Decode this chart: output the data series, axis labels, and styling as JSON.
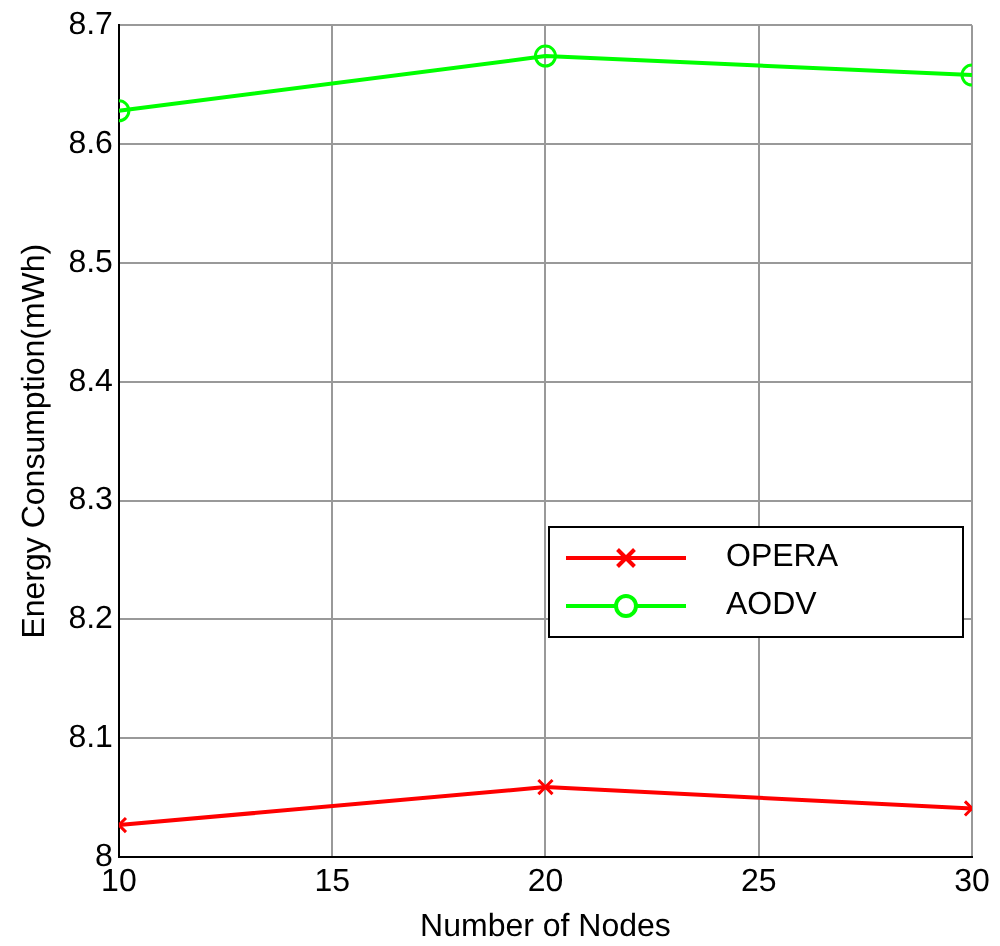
{
  "chart_data": {
    "type": "line",
    "xlabel": "Number of Nodes",
    "ylabel": "Energy Consumption(mWh)",
    "x": [
      10,
      20,
      30
    ],
    "series": [
      {
        "name": "OPERA",
        "color": "#ff0000",
        "values": [
          8.027,
          8.059,
          8.041
        ],
        "marker": "cross"
      },
      {
        "name": "AODV",
        "color": "#00ff00",
        "values": [
          8.628,
          8.674,
          8.658
        ],
        "marker": "circle"
      }
    ],
    "xlim": [
      10,
      30
    ],
    "xticks": [
      10,
      15,
      20,
      25,
      30
    ],
    "ylim": [
      8,
      8.7
    ],
    "yticks": [
      8,
      8.1,
      8.2,
      8.3,
      8.4,
      8.5,
      8.6,
      8.7
    ],
    "grid": true,
    "legend": "right"
  }
}
